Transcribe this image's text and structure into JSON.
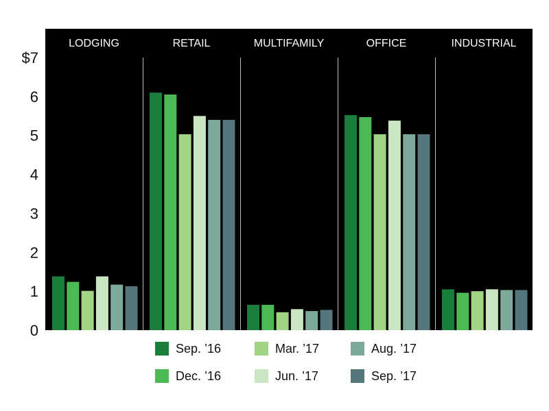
{
  "chart_data": {
    "type": "bar",
    "y_prefix": "$",
    "ylim": [
      0,
      7
    ],
    "yticks": [
      0,
      1,
      2,
      3,
      4,
      5,
      6,
      7
    ],
    "ytick_labels": [
      "0",
      "1",
      "2",
      "3",
      "4",
      "5",
      "6",
      "$7"
    ],
    "grid": false,
    "legend_position": "bottom",
    "categories": [
      "LODGING",
      "RETAIL",
      "MULTIFAMILY",
      "OFFICE",
      "INDUSTRIAL"
    ],
    "series": [
      {
        "name": "Sep. ’16",
        "color": "#1a7f3c",
        "values": [
          1.38,
          6.1,
          0.65,
          5.52,
          1.05
        ]
      },
      {
        "name": "Dec. ’16",
        "color": "#4cb954",
        "values": [
          1.24,
          6.05,
          0.65,
          5.47,
          0.96
        ]
      },
      {
        "name": "Mar. ’17",
        "color": "#a2d486",
        "values": [
          1.01,
          5.03,
          0.46,
          5.03,
          1.0
        ]
      },
      {
        "name": "Jun. ’17",
        "color": "#cbe6c3",
        "values": [
          1.38,
          5.5,
          0.54,
          5.38,
          1.05
        ]
      },
      {
        "name": "Aug. ’17",
        "color": "#7da99a",
        "values": [
          1.17,
          5.4,
          0.49,
          5.03,
          1.03
        ]
      },
      {
        "name": "Sep. ’17",
        "color": "#55767a",
        "values": [
          1.13,
          5.4,
          0.52,
          5.03,
          1.03
        ]
      }
    ]
  },
  "legend": [
    {
      "label": "Sep. ’16",
      "color": "#1a7f3c"
    },
    {
      "label": "Mar. ’17",
      "color": "#a2d486"
    },
    {
      "label": "Aug. ’17",
      "color": "#7da99a"
    },
    {
      "label": "Dec. ’16",
      "color": "#4cb954"
    },
    {
      "label": "Jun. ’17",
      "color": "#cbe6c3"
    },
    {
      "label": "Sep. ’17",
      "color": "#55767a"
    }
  ]
}
